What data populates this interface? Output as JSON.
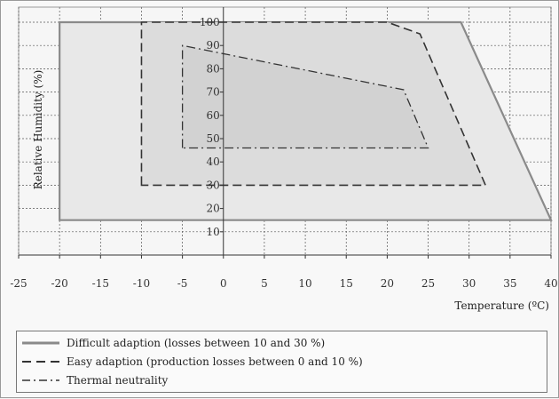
{
  "chart_data": {
    "type": "area",
    "xlabel": "Temperature (ºC)",
    "ylabel": "Relative Humidity (%)",
    "xlim": [
      -25,
      40
    ],
    "ylim": [
      0,
      100
    ],
    "x_ticks": [
      -25,
      -20,
      -15,
      -10,
      -5,
      0,
      5,
      10,
      15,
      20,
      25,
      30,
      35,
      40
    ],
    "y_ticks": [
      10,
      20,
      30,
      40,
      50,
      60,
      70,
      80,
      90,
      100
    ],
    "grid": true,
    "legend_position": "bottom",
    "series": [
      {
        "name": "Difficult adaption (losses between 10 and 30 %)",
        "line_style": "solid-gray",
        "fill": "#e8e8e8",
        "points": [
          [
            -20,
            15
          ],
          [
            -20,
            100
          ],
          [
            29,
            100
          ],
          [
            40,
            15
          ]
        ]
      },
      {
        "name": "Easy adaption (production losses between 0 and 10 %)",
        "line_style": "dashed",
        "fill": "#dcdcdc",
        "points": [
          [
            -10,
            30
          ],
          [
            -10,
            100
          ],
          [
            20,
            100
          ],
          [
            24,
            95
          ],
          [
            32,
            30
          ]
        ]
      },
      {
        "name": "Thermal neutrality",
        "line_style": "dash-dot",
        "fill": "#d2d2d2",
        "points": [
          [
            -5,
            46
          ],
          [
            -5,
            90
          ],
          [
            22,
            71
          ],
          [
            25,
            46
          ]
        ]
      }
    ]
  },
  "colors": {
    "difficult_stroke": "#8a8a8a",
    "dark_stroke": "#333333",
    "grid": "#555555"
  }
}
